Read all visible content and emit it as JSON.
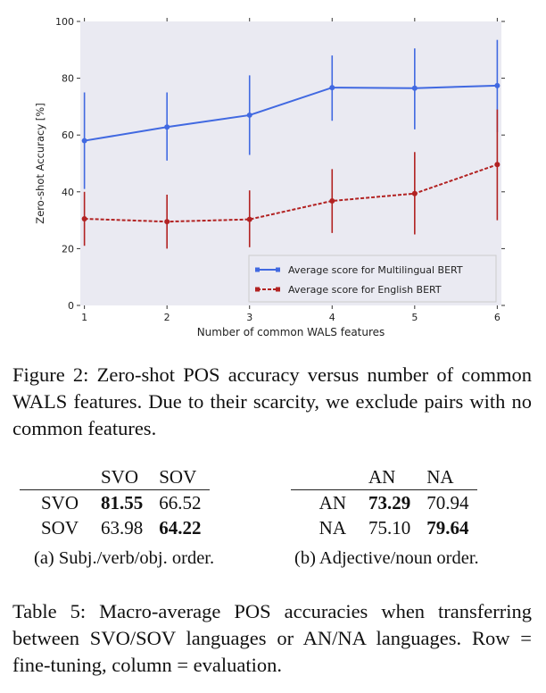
{
  "chart_data": {
    "type": "line",
    "xlabel": "Number of common WALS features",
    "ylabel": "Zero-shot Accuracy [%]",
    "xlim": [
      0.95,
      6.05
    ],
    "ylim": [
      0,
      100
    ],
    "x_ticks": [
      "1",
      "2",
      "3",
      "4",
      "5",
      "6"
    ],
    "y_ticks": [
      "0",
      "20",
      "40",
      "60",
      "80",
      "100"
    ],
    "grid": false,
    "legend_placement": "lower-right",
    "x": [
      1,
      2,
      3,
      4,
      5,
      6
    ],
    "series": [
      {
        "name": "Average score for Multilingual BERT",
        "color": "#4169e1",
        "style": "solid",
        "values": [
          58,
          62.8,
          67,
          76.7,
          76.5,
          77.4
        ],
        "err_low": [
          41,
          51,
          53,
          65,
          62,
          61
        ],
        "err_high": [
          75,
          75,
          81,
          88,
          90.5,
          93.5
        ]
      },
      {
        "name": "Average score for English BERT",
        "color": "#b22222",
        "style": "dashed",
        "values": [
          30.5,
          29.5,
          30.3,
          36.8,
          39.4,
          49.6
        ],
        "err_low": [
          21,
          20,
          20.5,
          25.5,
          25,
          30
        ],
        "err_high": [
          40,
          39,
          40.5,
          48,
          54,
          69
        ]
      }
    ]
  },
  "figure_caption": {
    "prefix": "Figure 2: Zero-shot",
    "sc": "POS",
    "rest": "accuracy versus number of common WALS features. Due to their scarcity, we exclude pairs with no common features."
  },
  "table_a": {
    "cols": [
      "SVO",
      "SOV"
    ],
    "rows": [
      {
        "label": "SVO",
        "cells": [
          "81.55",
          "66.52"
        ]
      },
      {
        "label": "SOV",
        "cells": [
          "63.98",
          "64.22"
        ]
      }
    ],
    "caption": "(a) Subj./verb/obj. order."
  },
  "table_b": {
    "cols": [
      "AN",
      "NA"
    ],
    "rows": [
      {
        "label": "AN",
        "cells": [
          "73.29",
          "70.94"
        ]
      },
      {
        "label": "NA",
        "cells": [
          "75.10",
          "79.64"
        ]
      }
    ],
    "caption": "(b) Adjective/noun order."
  },
  "table_caption": {
    "prefix": "Table 5: Macro-average",
    "sc": "POS",
    "rest": "accuracies when transferring between SVO/SOV languages or AN/NA languages. Row = fine-tuning, column = evaluation."
  }
}
